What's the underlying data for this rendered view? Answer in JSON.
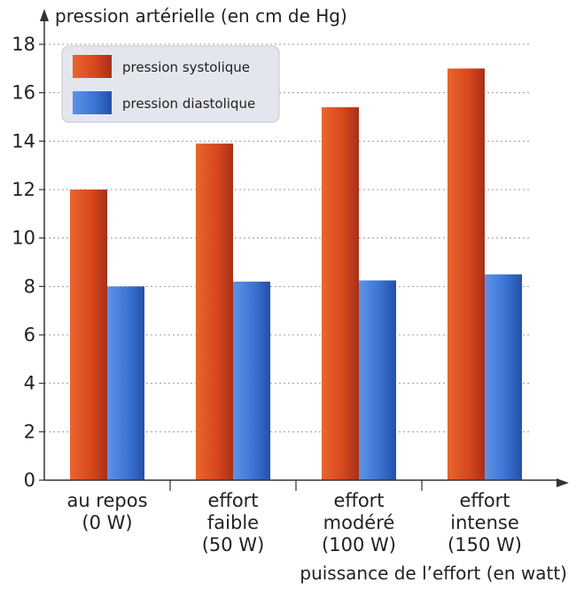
{
  "chart_data": {
    "type": "bar",
    "title": "",
    "ylabel": "pression artérielle (en cm de Hg)",
    "xlabel": "puissance de l’effort (en watt)",
    "ylim": [
      0,
      18
    ],
    "yticks": [
      0,
      2,
      4,
      6,
      8,
      10,
      12,
      14,
      16,
      18
    ],
    "grid": true,
    "legend_position": "top-left",
    "categories": [
      [
        "au repos",
        "(0 W)"
      ],
      [
        "effort",
        "faible",
        "(50 W)"
      ],
      [
        "effort",
        "modéré",
        "(100 W)"
      ],
      [
        "effort",
        "intense",
        "(150 W)"
      ]
    ],
    "series": [
      {
        "name": "pression systolique",
        "color": "#d9481c",
        "values": [
          12,
          13.9,
          15.4,
          17
        ]
      },
      {
        "name": "pression diastolique",
        "color": "#3b74d4",
        "values": [
          8,
          8.2,
          8.25,
          8.5
        ]
      }
    ]
  }
}
